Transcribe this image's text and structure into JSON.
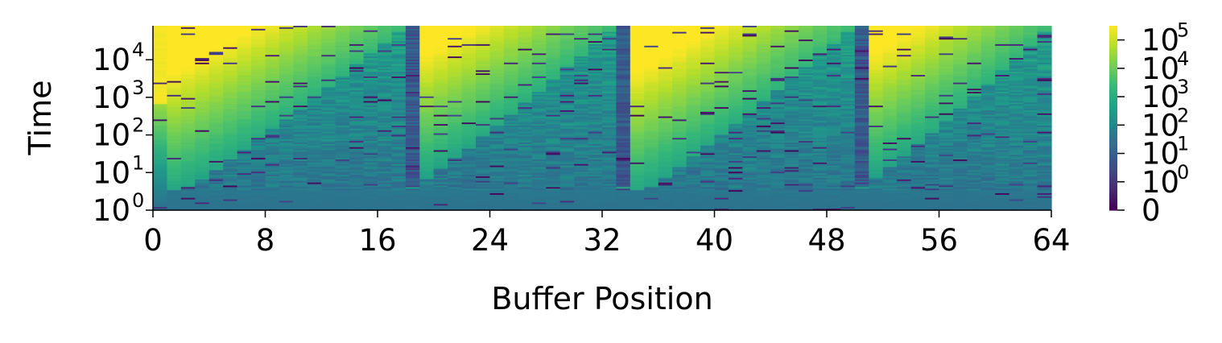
{
  "chart_data": {
    "type": "heatmap",
    "title": "",
    "xlabel": "Buffer Position",
    "ylabel": "Time",
    "x_ticks": [
      "0",
      "8",
      "16",
      "24",
      "32",
      "40",
      "48",
      "56",
      "64"
    ],
    "x_tick_values": [
      0,
      8,
      16,
      24,
      32,
      40,
      48,
      56,
      64
    ],
    "xlim": [
      0,
      64
    ],
    "y_scale": "log",
    "y_ticks": [
      {
        "base": "10",
        "exp": "0"
      },
      {
        "base": "10",
        "exp": "1"
      },
      {
        "base": "10",
        "exp": "2"
      },
      {
        "base": "10",
        "exp": "3"
      },
      {
        "base": "10",
        "exp": "4"
      }
    ],
    "y_tick_values": [
      1,
      10,
      100,
      1000,
      10000
    ],
    "ylim": [
      1,
      80000
    ],
    "colorbar": {
      "colormap": "viridis",
      "scale": "symlog",
      "ticks": [
        {
          "base": "0",
          "exp": ""
        },
        {
          "base": "10",
          "exp": "0"
        },
        {
          "base": "10",
          "exp": "1"
        },
        {
          "base": "10",
          "exp": "2"
        },
        {
          "base": "10",
          "exp": "3"
        },
        {
          "base": "10",
          "exp": "4"
        },
        {
          "base": "10",
          "exp": "5"
        }
      ],
      "tick_levels": [
        0,
        1,
        2,
        3,
        4,
        5,
        6
      ],
      "max_level": 6.5
    },
    "write_waves": [
      {
        "start_position": 0,
        "end_position": 18,
        "start_time": 1,
        "end_time": 80000
      },
      {
        "start_position": 18,
        "end_position": 33,
        "start_time": 3,
        "end_time": 80000
      },
      {
        "start_position": 33,
        "end_position": 50,
        "start_time": 1,
        "end_time": 80000
      },
      {
        "start_position": 50,
        "end_position": 64,
        "start_time": 3,
        "end_time": 80000
      }
    ],
    "reset_positions": [
      18,
      33,
      50
    ],
    "colors": {
      "viridis": [
        "#440154",
        "#482878",
        "#3e4a89",
        "#31688e",
        "#26828e",
        "#1f9e89",
        "#35b779",
        "#6ece58",
        "#b5de2b",
        "#fde725"
      ]
    }
  }
}
